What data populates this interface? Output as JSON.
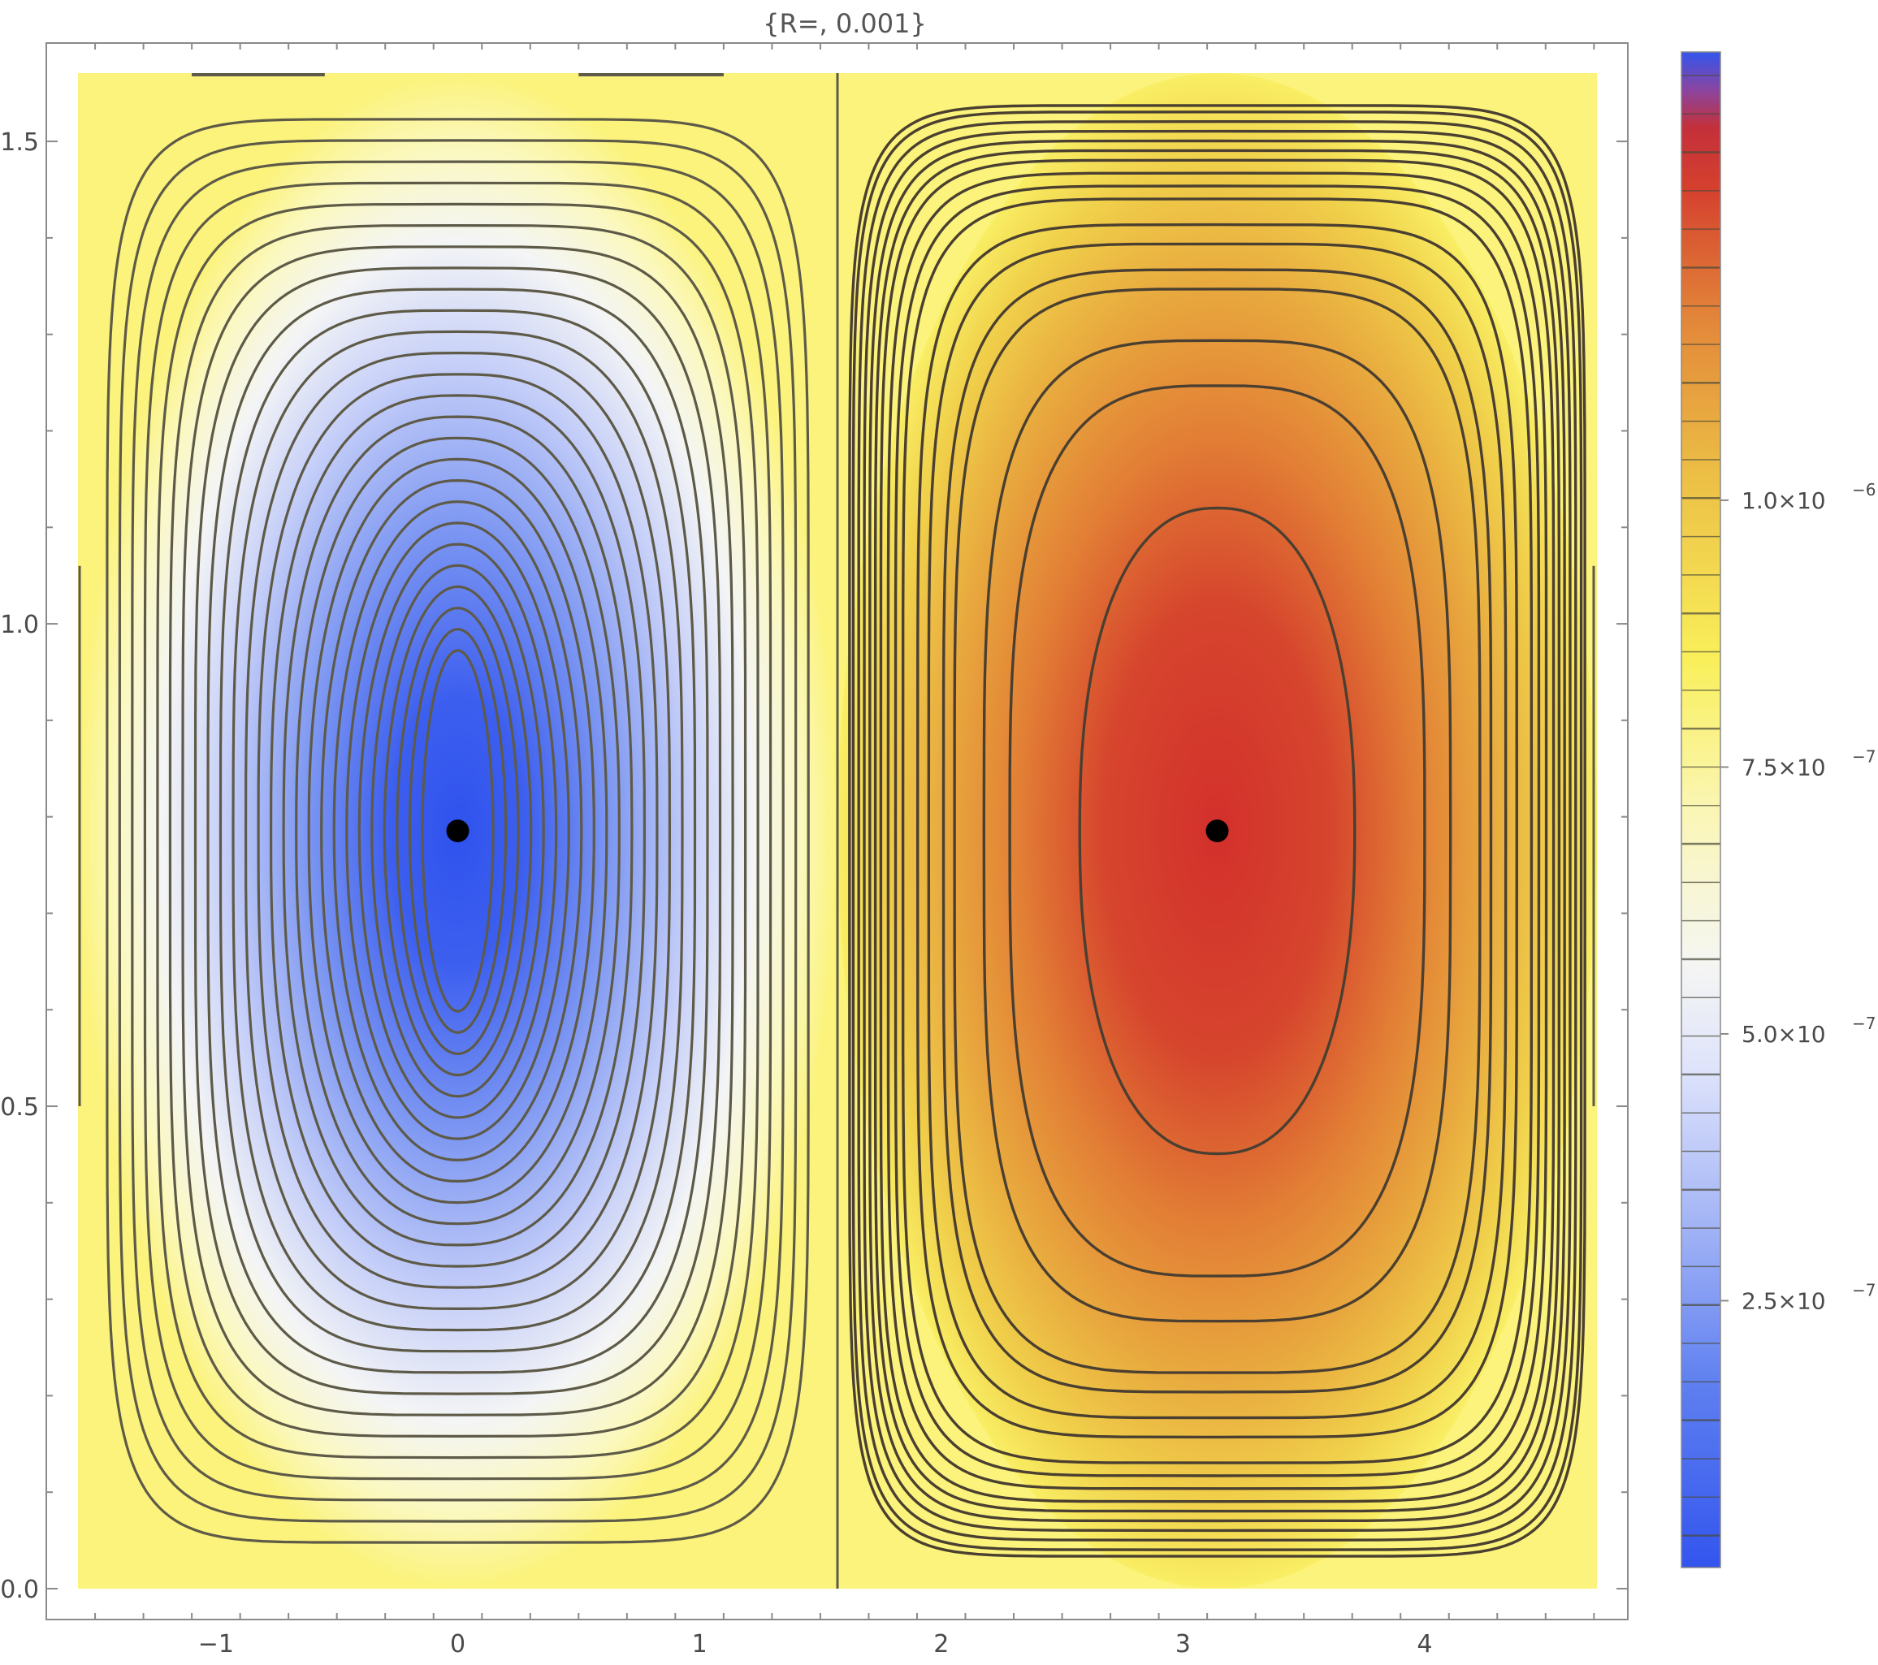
{
  "chart_data": {
    "type": "heatmap",
    "title": "{R=, 0.001}",
    "xlim": [
      -1.5708,
      4.7124
    ],
    "ylim": [
      0,
      1.5708
    ],
    "x_ticks": [
      {
        "value": -1,
        "label": "−1"
      },
      {
        "value": 0,
        "label": "0"
      },
      {
        "value": 1,
        "label": "1"
      },
      {
        "value": 2,
        "label": "2"
      },
      {
        "value": 3,
        "label": "3"
      },
      {
        "value": 4,
        "label": "4"
      }
    ],
    "y_ticks": [
      {
        "value": 0,
        "label": "0.0"
      },
      {
        "value": 0.5,
        "label": "0.5"
      },
      {
        "value": 1.0,
        "label": "1.0"
      },
      {
        "value": 1.5,
        "label": "1.5"
      }
    ],
    "contours": {
      "blue_vortex_center": [
        0,
        0.7854
      ],
      "red_vortex_center": [
        3.1416,
        0.7854
      ]
    },
    "points": [
      {
        "x": 0,
        "y": 0.7854
      },
      {
        "x": 3.1416,
        "y": 0.7854
      }
    ],
    "colorbar": {
      "range": [
        0.0,
        1.42e-06
      ],
      "colors": [
        "#3355ee",
        "#7b96f2",
        "#dfe4fb",
        "#f7f8f2",
        "#faf7b0",
        "#f9ef5a",
        "#e8b040",
        "#e27e35",
        "#d3302c",
        "#c2303a",
        "#3355ee"
      ],
      "ticks": [
        {
          "value": 2.5e-07,
          "mantissa": "2.5×10",
          "exponent": "−7"
        },
        {
          "value": 5e-07,
          "mantissa": "5.0×10",
          "exponent": "−7"
        },
        {
          "value": 7.5e-07,
          "mantissa": "7.5×10",
          "exponent": "−7"
        },
        {
          "value": 1e-06,
          "mantissa": "1.0×10",
          "exponent": "−6"
        }
      ]
    },
    "grid": false
  }
}
